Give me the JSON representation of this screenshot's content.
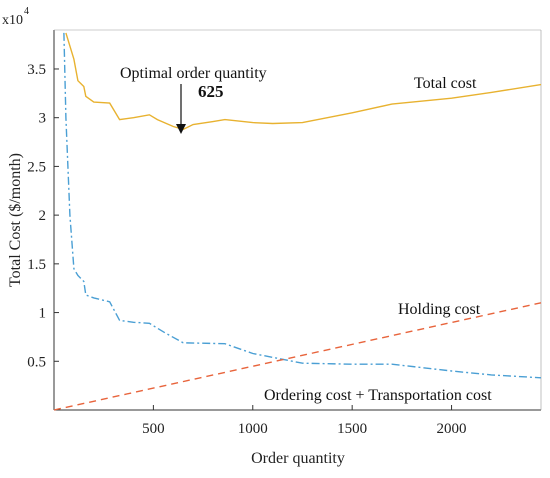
{
  "chart_data": {
    "type": "line",
    "xlabel": "Order quantity",
    "ylabel": "Total Cost ($/month)",
    "y_multiplier_base": "x10",
    "y_multiplier_exp": "4",
    "xlim": [
      0,
      2450
    ],
    "ylim": [
      0,
      39000
    ],
    "xticks": [
      500,
      1000,
      1500,
      2000
    ],
    "xtick_labels": [
      "500",
      "1000",
      "1500",
      "2000"
    ],
    "yticks": [
      5000,
      10000,
      15000,
      20000,
      25000,
      30000,
      35000
    ],
    "ytick_labels": [
      "0.5",
      "1",
      "1.5",
      "2",
      "2.5",
      "3",
      "3.5"
    ],
    "grid": false,
    "series": [
      {
        "name": "Total cost",
        "color": "#E8B230",
        "style": "solid",
        "x": [
          60,
          100,
          120,
          150,
          160,
          200,
          280,
          330,
          400,
          480,
          520,
          600,
          650,
          700,
          800,
          860,
          1000,
          1100,
          1250,
          1500,
          1700,
          2000,
          2200,
          2450
        ],
        "y": [
          38700,
          36000,
          33800,
          33200,
          32200,
          31600,
          31500,
          29800,
          30000,
          30300,
          29800,
          29100,
          28800,
          29300,
          29600,
          29800,
          29500,
          29400,
          29500,
          30500,
          31400,
          32000,
          32600,
          33400
        ]
      },
      {
        "name": "Ordering cost + Transportation cost",
        "color": "#4A9FD4",
        "style": "dashdot",
        "x": [
          50,
          60,
          80,
          100,
          120,
          150,
          160,
          200,
          280,
          330,
          400,
          480,
          560,
          650,
          860,
          1000,
          1250,
          1500,
          1700,
          2000,
          2200,
          2450
        ],
        "y": [
          38700,
          30000,
          20000,
          14500,
          13800,
          13200,
          11800,
          11500,
          11100,
          9200,
          9000,
          8900,
          7900,
          6900,
          6800,
          5800,
          4800,
          4700,
          4700,
          4000,
          3600,
          3300
        ]
      },
      {
        "name": "Holding cost",
        "color": "#E8643C",
        "style": "dashed",
        "x": [
          0,
          2450
        ],
        "y": [
          0,
          11000
        ]
      }
    ],
    "annotations": {
      "optimal_label": "Optimal order quantity",
      "optimal_value": "625",
      "optimal_x": 650,
      "total_cost_label": "Total cost",
      "holding_label": "Holding cost",
      "ordering_label": "Ordering cost + Transportation cost"
    }
  }
}
